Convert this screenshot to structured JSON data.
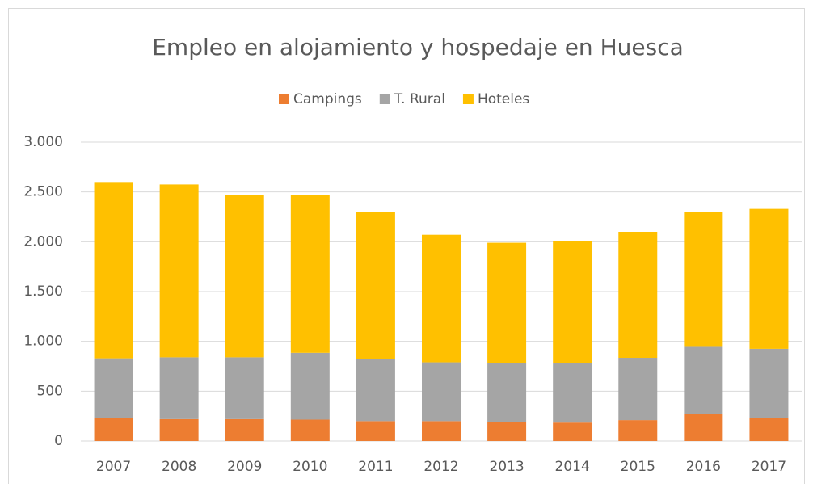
{
  "chart_data": {
    "type": "stacked_bar",
    "title": "Empleo en alojamiento y hospedaje en Huesca",
    "categories": [
      "2007",
      "2008",
      "2009",
      "2010",
      "2011",
      "2012",
      "2013",
      "2014",
      "2015",
      "2016",
      "2017"
    ],
    "series": [
      {
        "name": "Campings",
        "color": "#ed7d31",
        "values": [
          230,
          220,
          220,
          215,
          200,
          200,
          190,
          185,
          210,
          275,
          235
        ]
      },
      {
        "name": "T. Rural",
        "color": "#a5a5a5",
        "values": [
          600,
          620,
          620,
          670,
          625,
          590,
          590,
          595,
          625,
          670,
          690
        ]
      },
      {
        "name": "Hoteles",
        "color": "#ffc000",
        "values": [
          1770,
          1735,
          1630,
          1585,
          1475,
          1280,
          1210,
          1230,
          1265,
          1355,
          1405
        ]
      }
    ],
    "ylim": [
      0,
      3000
    ],
    "yticks": [
      0,
      500,
      {
        "value": 1000,
        "label": "1.000"
      },
      {
        "value": 1500,
        "label": "1.500"
      },
      {
        "value": 2000,
        "label": "2.000"
      },
      {
        "value": 2500,
        "label": "2.500"
      },
      {
        "value": 3000,
        "label": "3.000"
      }
    ],
    "grid": true,
    "legend": "top"
  }
}
